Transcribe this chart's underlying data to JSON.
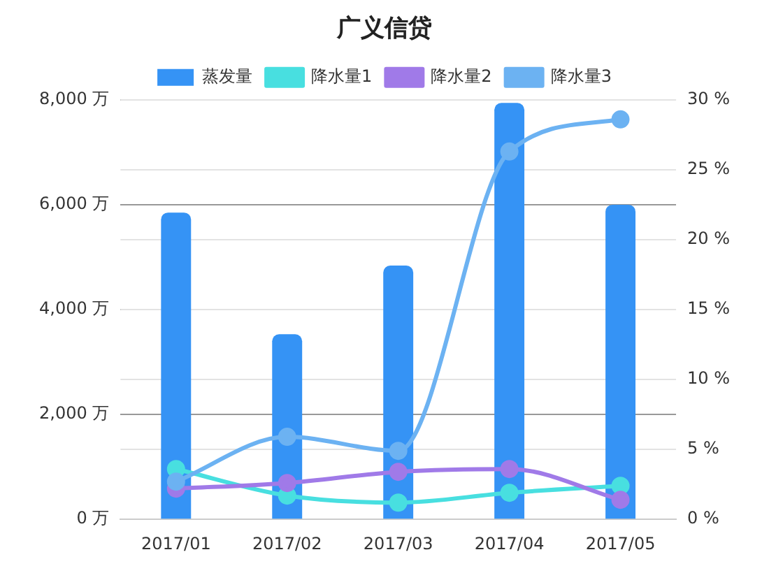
{
  "chart_data": {
    "type": "bar",
    "title": "广义信贷",
    "categories": [
      "2017/01",
      "2017/02",
      "2017/03",
      "2017/04",
      "2017/05"
    ],
    "series": [
      {
        "name": "蒸发量",
        "color": "#3593f5",
        "values": [
          5850,
          3530,
          4840,
          7940,
          6000
        ]
      },
      {
        "name": "降水量1",
        "type": "line",
        "axis": "y2",
        "color": "#48dfe0",
        "values": [
          3.6,
          1.7,
          1.2,
          1.9,
          2.4
        ]
      },
      {
        "name": "降水量2",
        "type": "line",
        "axis": "y2",
        "color": "#a07ae8",
        "values": [
          2.2,
          2.6,
          3.4,
          3.6,
          1.4
        ]
      },
      {
        "name": "降水量3",
        "type": "line",
        "axis": "y2",
        "color": "#6cb2f2",
        "values": [
          2.7,
          5.9,
          4.9,
          26.3,
          28.6
        ]
      }
    ],
    "ylim": [
      0,
      8000
    ],
    "yticks": [
      {
        "value": 0,
        "label": "0 万"
      },
      {
        "value": 2000,
        "label": "2,000 万"
      },
      {
        "value": 4000,
        "label": "4,000 万"
      },
      {
        "value": 6000,
        "label": "6,000 万"
      },
      {
        "value": 8000,
        "label": "8,000 万"
      }
    ],
    "y2lim": [
      0,
      30
    ],
    "y2ticks": [
      {
        "value": 0,
        "label": "0 %"
      },
      {
        "value": 5,
        "label": "5 %"
      },
      {
        "value": 10,
        "label": "10 %"
      },
      {
        "value": 15,
        "label": "15 %"
      },
      {
        "value": 20,
        "label": "20 %"
      },
      {
        "value": 25,
        "label": "25 %"
      },
      {
        "value": 30,
        "label": "30 %"
      }
    ],
    "grid": "y",
    "legend": "top",
    "marker": "circle",
    "line_style": "solid"
  }
}
